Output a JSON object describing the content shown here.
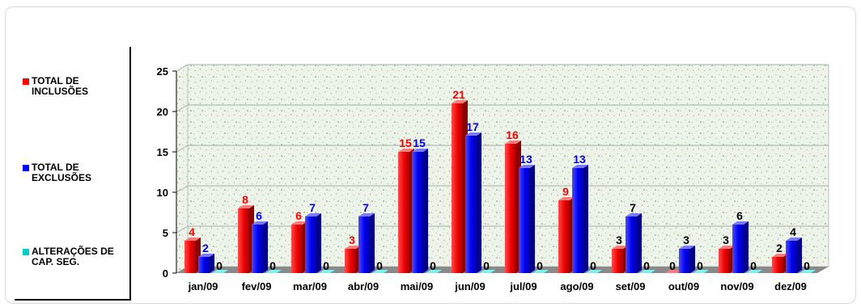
{
  "chart_data": {
    "type": "bar",
    "title": "",
    "xlabel": "",
    "ylabel": "",
    "ylim": [
      0,
      25
    ],
    "yticks": [
      0,
      5,
      10,
      15,
      20,
      25
    ],
    "grid": true,
    "legend_position": "left",
    "categories": [
      "jan/09",
      "fev/09",
      "mar/09",
      "abr/09",
      "mai/09",
      "jun/09",
      "jul/09",
      "ago/09",
      "set/09",
      "out/09",
      "nov/09",
      "dez/09"
    ],
    "series": [
      {
        "name": "TOTAL DE\nINCLUSÕES",
        "color": "#ff0000",
        "values": [
          4,
          8,
          6,
          3,
          15,
          21,
          16,
          9,
          3,
          0,
          3,
          2
        ]
      },
      {
        "name": "TOTAL DE\nEXCLUSÕES",
        "color": "#0000ff",
        "values": [
          2,
          6,
          7,
          7,
          15,
          17,
          13,
          13,
          7,
          3,
          6,
          4
        ]
      },
      {
        "name": "ALTERAÇÕES DE\nCAP. SEG.",
        "color": "#00cccc",
        "values": [
          0,
          0,
          0,
          0,
          0,
          0,
          0,
          0,
          0,
          0,
          0,
          0
        ]
      }
    ]
  }
}
